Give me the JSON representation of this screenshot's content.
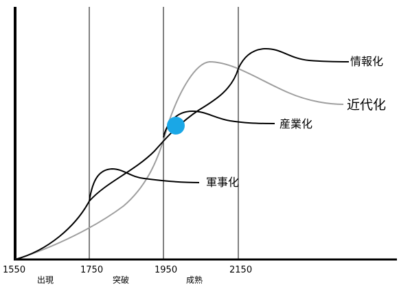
{
  "axis": {
    "years": [
      "1550",
      "1750",
      "1950",
      "2150"
    ],
    "stages": [
      "出現",
      "突破",
      "成熟"
    ]
  },
  "curves": {
    "informatization": "情報化",
    "modernization": "近代化",
    "industrialization": "産業化",
    "militarization": "軍事化"
  },
  "colors": {
    "main_curves": "#000000",
    "modernization_curve": "#9e9e9e",
    "gridlines": "#000000",
    "marker": "#1aa7e6"
  }
}
